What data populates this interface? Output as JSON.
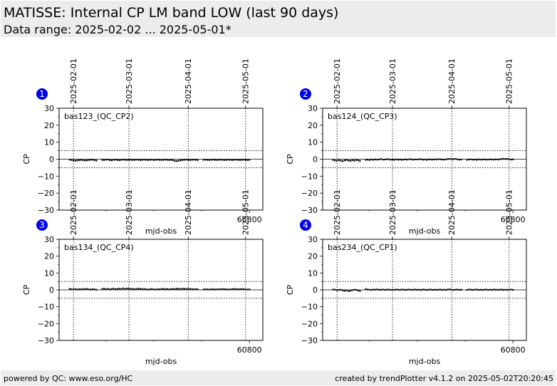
{
  "header": {
    "title": "MATISSE: Internal CP LM band LOW (last 90 days)",
    "subtitle": "Data range: 2025-02-02 ... 2025-05-01*"
  },
  "footer": {
    "left": "powered by QC: www.eso.org/HC",
    "right": "created by trendPlotter v4.1.2 on 2025-05-02T20:20:45"
  },
  "colors": {
    "badge": "#0000ee",
    "points": "#000000",
    "panel_bg": "#ececec"
  },
  "chart_data": [
    {
      "type": "scatter",
      "badge": "1",
      "label": "bas123_(QC_CP2)",
      "xlabel": "mjd-obs",
      "ylabel": "CP",
      "xlim": [
        60700.5,
        60807
      ],
      "ylim": [
        -30,
        30
      ],
      "y_ticks": [
        30,
        20,
        10,
        0,
        -10,
        -20,
        -30
      ],
      "x_ticks": [
        60800
      ],
      "x_tick_labels": [
        "60800"
      ],
      "date_markers": [
        {
          "x": 60708,
          "label": "2025-02-01"
        },
        {
          "x": 60737,
          "label": "2025-03-01"
        },
        {
          "x": 60768,
          "label": "2025-04-01"
        },
        {
          "x": 60798,
          "label": "2025-05-01"
        }
      ],
      "hlines": [
        5,
        -5
      ],
      "x": [
        60706,
        60707,
        60708,
        60709,
        60710,
        60711,
        60712,
        60713,
        60714,
        60715,
        60716,
        60717,
        60718,
        60719,
        60720,
        60723,
        60724,
        60725,
        60726,
        60727,
        60728,
        60729,
        60730,
        60731,
        60732,
        60733,
        60734,
        60735,
        60736,
        60737,
        60738,
        60739,
        60740,
        60741,
        60742,
        60743,
        60744,
        60745,
        60746,
        60747,
        60748,
        60749,
        60750,
        60751,
        60752,
        60753,
        60754,
        60755,
        60756,
        60757,
        60758,
        60759,
        60760,
        60761,
        60762,
        60763,
        60764,
        60765,
        60766,
        60767,
        60768,
        60769,
        60770,
        60771,
        60772,
        60773,
        60776,
        60777,
        60778,
        60779,
        60780,
        60781,
        60782,
        60783,
        60784,
        60785,
        60786,
        60787,
        60788,
        60789,
        60790,
        60791,
        60792,
        60793,
        60794,
        60795,
        60796,
        60797,
        60798,
        60799,
        60800
      ],
      "y": [
        -0.3,
        -0.5,
        -0.8,
        -0.9,
        -0.7,
        -0.6,
        -0.4,
        -0.6,
        -0.8,
        -0.7,
        -0.5,
        -0.4,
        -0.3,
        -0.6,
        -0.8,
        -0.4,
        -0.5,
        -0.3,
        -0.2,
        -0.6,
        -0.7,
        -0.4,
        -0.3,
        -0.5,
        -0.6,
        -0.4,
        -0.3,
        -0.4,
        -0.5,
        -0.3,
        -0.4,
        -0.5,
        -0.4,
        -0.3,
        -0.4,
        -0.5,
        -0.4,
        -0.3,
        -0.4,
        -0.5,
        -0.4,
        -0.3,
        -0.5,
        -0.4,
        -0.3,
        -0.4,
        -0.5,
        -0.4,
        -0.3,
        -0.4,
        -0.5,
        -0.4,
        -0.6,
        -1.0,
        -1.1,
        -0.9,
        -0.7,
        -0.5,
        -0.4,
        -0.3,
        -0.4,
        -0.5,
        -0.4,
        -0.3,
        -0.4,
        -0.5,
        -0.4,
        -0.3,
        -0.4,
        -0.5,
        -0.4,
        -0.3,
        -0.4,
        -0.5,
        -0.4,
        -0.3,
        -0.4,
        -0.5,
        -0.4,
        -0.3,
        -0.4,
        -0.5,
        -0.4,
        -0.3,
        -0.4,
        -0.5,
        -0.4,
        -0.3,
        -0.4,
        -0.5,
        -0.4
      ]
    },
    {
      "type": "scatter",
      "badge": "2",
      "label": "bas124_(QC_CP3)",
      "xlabel": "mjd-obs",
      "ylabel": "CP",
      "xlim": [
        60700.5,
        60807
      ],
      "ylim": [
        -30,
        30
      ],
      "y_ticks": [
        30,
        20,
        10,
        0,
        -10,
        -20,
        -30
      ],
      "x_ticks": [
        60800
      ],
      "x_tick_labels": [
        "60800"
      ],
      "date_markers": [
        {
          "x": 60708,
          "label": "2025-02-01"
        },
        {
          "x": 60737,
          "label": "2025-03-01"
        },
        {
          "x": 60768,
          "label": "2025-04-01"
        },
        {
          "x": 60798,
          "label": "2025-05-01"
        }
      ],
      "hlines": [
        5,
        -5
      ],
      "x": [
        60706,
        60707,
        60708,
        60709,
        60710,
        60711,
        60712,
        60713,
        60714,
        60715,
        60716,
        60717,
        60718,
        60719,
        60720,
        60723,
        60724,
        60725,
        60726,
        60727,
        60728,
        60729,
        60730,
        60731,
        60732,
        60733,
        60734,
        60735,
        60736,
        60737,
        60738,
        60739,
        60740,
        60741,
        60742,
        60743,
        60744,
        60745,
        60746,
        60747,
        60748,
        60749,
        60750,
        60751,
        60752,
        60753,
        60754,
        60755,
        60756,
        60757,
        60758,
        60759,
        60760,
        60761,
        60762,
        60763,
        60764,
        60765,
        60766,
        60767,
        60768,
        60769,
        60770,
        60771,
        60772,
        60773,
        60776,
        60777,
        60778,
        60779,
        60780,
        60781,
        60782,
        60783,
        60784,
        60785,
        60786,
        60787,
        60788,
        60789,
        60790,
        60791,
        60792,
        60793,
        60794,
        60795,
        60796,
        60797,
        60798,
        60799,
        60800
      ],
      "y": [
        -0.5,
        -0.8,
        -1.0,
        -0.6,
        -0.9,
        -1.2,
        -0.7,
        -0.5,
        -0.8,
        -1.0,
        -0.6,
        -0.9,
        -0.5,
        -0.7,
        -1.0,
        -0.4,
        -0.3,
        -0.5,
        -0.2,
        -0.4,
        -0.1,
        -0.3,
        -0.2,
        0.1,
        -0.3,
        -0.2,
        0.0,
        -0.1,
        -0.3,
        -0.2,
        -0.4,
        -0.1,
        -0.3,
        -0.2,
        -0.4,
        -0.2,
        -0.1,
        -0.3,
        0.1,
        -0.2,
        -0.3,
        -0.1,
        -0.2,
        0.0,
        -0.1,
        -0.3,
        -0.2,
        -0.4,
        -0.1,
        -0.2,
        -0.3,
        -0.1,
        -0.2,
        0.0,
        -0.1,
        -0.2,
        -0.3,
        -0.1,
        0.1,
        0.2,
        0.1,
        0.0,
        0.2,
        -0.1,
        -0.3,
        -0.2,
        -0.4,
        -0.2,
        -0.1,
        -0.3,
        -0.2,
        -0.4,
        -0.1,
        -0.3,
        -0.2,
        -0.1,
        -0.3,
        -0.2,
        -0.1,
        -0.2,
        -0.3,
        -0.1,
        -0.2,
        -0.1,
        0.1,
        0.2,
        0.1,
        0.2,
        0.0,
        -0.2,
        -0.1
      ]
    },
    {
      "type": "scatter",
      "badge": "3",
      "label": "bas134_(QC_CP4)",
      "xlabel": "mjd-obs",
      "ylabel": "CP",
      "xlim": [
        60700.5,
        60807
      ],
      "ylim": [
        -30,
        30
      ],
      "y_ticks": [
        30,
        20,
        10,
        0,
        -10,
        -20,
        -30
      ],
      "x_ticks": [
        60800
      ],
      "x_tick_labels": [
        "60800"
      ],
      "date_markers": [
        {
          "x": 60708,
          "label": "2025-02-01"
        },
        {
          "x": 60737,
          "label": "2025-03-01"
        },
        {
          "x": 60768,
          "label": "2025-04-01"
        },
        {
          "x": 60798,
          "label": "2025-05-01"
        }
      ],
      "hlines": [
        5,
        -5
      ],
      "x": [
        60706,
        60707,
        60708,
        60709,
        60710,
        60711,
        60712,
        60713,
        60714,
        60715,
        60716,
        60717,
        60718,
        60719,
        60720,
        60723,
        60724,
        60725,
        60726,
        60727,
        60728,
        60729,
        60730,
        60731,
        60732,
        60733,
        60734,
        60735,
        60736,
        60737,
        60738,
        60739,
        60740,
        60741,
        60742,
        60743,
        60744,
        60745,
        60746,
        60747,
        60748,
        60749,
        60750,
        60751,
        60752,
        60753,
        60754,
        60755,
        60756,
        60757,
        60758,
        60759,
        60760,
        60761,
        60762,
        60763,
        60764,
        60765,
        60766,
        60767,
        60768,
        60769,
        60770,
        60771,
        60772,
        60773,
        60776,
        60777,
        60778,
        60779,
        60780,
        60781,
        60782,
        60783,
        60784,
        60785,
        60786,
        60787,
        60788,
        60789,
        60790,
        60791,
        60792,
        60793,
        60794,
        60795,
        60796,
        60797,
        60798,
        60799,
        60800
      ],
      "y": [
        0.6,
        0.4,
        0.3,
        0.5,
        0.2,
        0.4,
        0.3,
        0.5,
        0.4,
        0.6,
        0.3,
        0.2,
        0.4,
        0.3,
        0.1,
        0.5,
        0.7,
        0.4,
        0.6,
        0.3,
        0.5,
        0.8,
        0.4,
        0.6,
        0.7,
        0.5,
        0.9,
        0.6,
        0.8,
        0.7,
        0.5,
        0.6,
        0.4,
        0.5,
        0.7,
        0.6,
        0.4,
        0.5,
        0.3,
        0.2,
        0.4,
        0.5,
        0.3,
        0.2,
        0.4,
        0.3,
        0.5,
        0.6,
        0.4,
        0.5,
        0.3,
        0.4,
        0.6,
        0.5,
        0.7,
        0.6,
        0.5,
        0.7,
        0.6,
        0.5,
        0.6,
        0.5,
        0.4,
        0.3,
        0.4,
        0.3,
        0.2,
        0.4,
        0.3,
        0.2,
        0.3,
        0.4,
        0.2,
        0.3,
        0.4,
        0.3,
        0.5,
        0.4,
        0.3,
        0.2,
        0.3,
        0.4,
        0.6,
        0.5,
        0.3,
        0.4,
        0.5,
        0.4,
        0.3,
        0.2,
        0.3
      ]
    },
    {
      "type": "scatter",
      "badge": "4",
      "label": "bas234_(QC_CP1)",
      "xlabel": "mjd-obs",
      "ylabel": "CP",
      "xlim": [
        60700.5,
        60807
      ],
      "ylim": [
        -30,
        30
      ],
      "y_ticks": [
        30,
        20,
        10,
        0,
        -10,
        -20,
        -30
      ],
      "x_ticks": [
        60800
      ],
      "x_tick_labels": [
        "60800"
      ],
      "date_markers": [
        {
          "x": 60708,
          "label": "2025-02-01"
        },
        {
          "x": 60737,
          "label": "2025-03-01"
        },
        {
          "x": 60768,
          "label": "2025-04-01"
        },
        {
          "x": 60798,
          "label": "2025-05-01"
        }
      ],
      "hlines": [
        5,
        -5
      ],
      "x": [
        60706,
        60707,
        60708,
        60709,
        60710,
        60711,
        60712,
        60713,
        60714,
        60715,
        60716,
        60717,
        60718,
        60719,
        60720,
        60723,
        60724,
        60725,
        60726,
        60727,
        60728,
        60729,
        60730,
        60731,
        60732,
        60733,
        60734,
        60735,
        60736,
        60737,
        60738,
        60739,
        60740,
        60741,
        60742,
        60743,
        60744,
        60745,
        60746,
        60747,
        60748,
        60749,
        60750,
        60751,
        60752,
        60753,
        60754,
        60755,
        60756,
        60757,
        60758,
        60759,
        60760,
        60761,
        60762,
        60763,
        60764,
        60765,
        60766,
        60767,
        60768,
        60769,
        60770,
        60771,
        60772,
        60773,
        60776,
        60777,
        60778,
        60779,
        60780,
        60781,
        60782,
        60783,
        60784,
        60785,
        60786,
        60787,
        60788,
        60789,
        60790,
        60791,
        60792,
        60793,
        60794,
        60795,
        60796,
        60797,
        60798,
        60799,
        60800
      ],
      "y": [
        0.2,
        0.1,
        -0.2,
        0.0,
        0.1,
        -0.4,
        -0.6,
        -0.3,
        -0.8,
        -0.5,
        -0.2,
        0.1,
        0.0,
        -0.4,
        -0.7,
        0.4,
        0.2,
        0.1,
        0.0,
        0.2,
        0.1,
        0.3,
        0.0,
        0.1,
        0.2,
        0.0,
        0.1,
        0.2,
        0.0,
        0.1,
        0.0,
        0.2,
        0.1,
        0.0,
        0.2,
        0.1,
        0.0,
        0.1,
        0.2,
        0.0,
        0.1,
        0.2,
        0.0,
        0.1,
        0.0,
        0.2,
        0.1,
        0.0,
        0.1,
        0.2,
        0.0,
        0.1,
        0.0,
        0.1,
        0.2,
        0.0,
        0.1,
        0.0,
        0.2,
        0.3,
        0.1,
        0.0,
        0.1,
        0.2,
        0.0,
        0.1,
        0.0,
        0.2,
        0.1,
        0.0,
        0.1,
        0.2,
        0.0,
        0.1,
        0.0,
        0.1,
        0.2,
        0.0,
        0.1,
        0.0,
        0.2,
        0.1,
        0.0,
        0.1,
        0.2,
        0.0,
        0.1,
        0.0,
        0.1,
        0.2,
        0.0
      ]
    }
  ]
}
